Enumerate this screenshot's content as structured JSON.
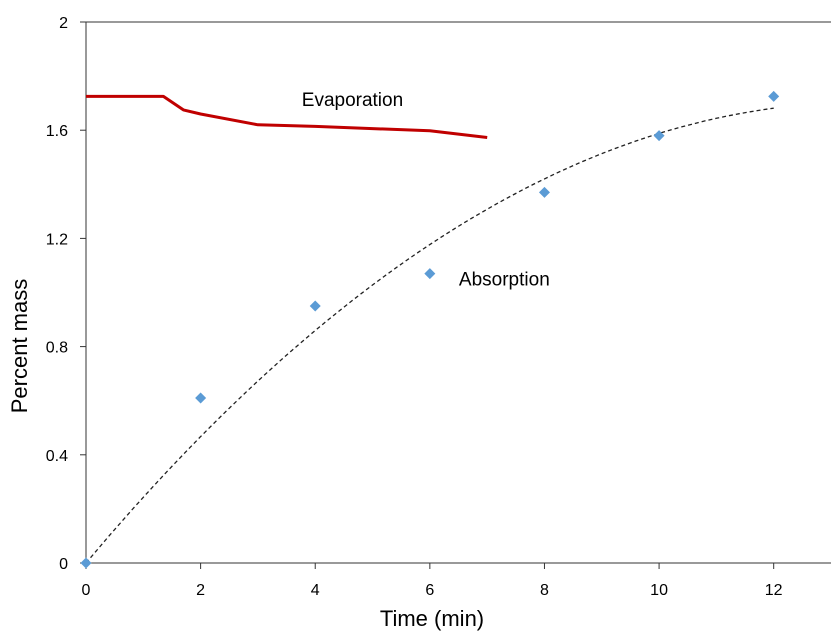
{
  "chart_data": {
    "type": "line",
    "title": "",
    "xlabel": "Time (min)",
    "ylabel": "Percent mass",
    "xlim": [
      0,
      13
    ],
    "ylim": [
      0,
      2
    ],
    "x_ticks": [
      0,
      2,
      4,
      6,
      8,
      10,
      12
    ],
    "y_ticks": [
      0,
      0.4,
      0.8,
      1.2,
      1.6,
      2
    ],
    "x_tick_labels": [
      "0",
      "2",
      "4",
      "6",
      "8",
      "10",
      "12"
    ],
    "y_tick_labels": [
      "0",
      "0.4",
      "0.8",
      "1.2",
      "1.6",
      "2"
    ],
    "grid": false,
    "legend": "none",
    "series": [
      {
        "name": "Evaporation",
        "kind": "line",
        "color": "#c00000",
        "x": [
          0,
          1.35,
          1.7,
          2.0,
          3.0,
          4.0,
          5.0,
          6.0,
          7.0
        ],
        "y": [
          1.725,
          1.725,
          1.675,
          1.66,
          1.62,
          1.614,
          1.606,
          1.598,
          1.573
        ]
      },
      {
        "name": "Absorption",
        "kind": "scatter",
        "color": "#5b9bd5",
        "x": [
          0,
          2,
          4,
          6,
          8,
          10,
          12
        ],
        "y": [
          0,
          0.61,
          0.95,
          1.07,
          1.37,
          1.58,
          1.725
        ]
      },
      {
        "kind": "trendline",
        "color": "#222222",
        "coefficients": [
          0,
          0.2523,
          -0.00935
        ],
        "x_range": [
          0,
          12
        ]
      }
    ],
    "annotations": [
      {
        "text": "Evaporation",
        "x": 4.65,
        "y": 1.69
      },
      {
        "text": "Absorption",
        "x": 7.3,
        "y": 1.025
      }
    ]
  }
}
